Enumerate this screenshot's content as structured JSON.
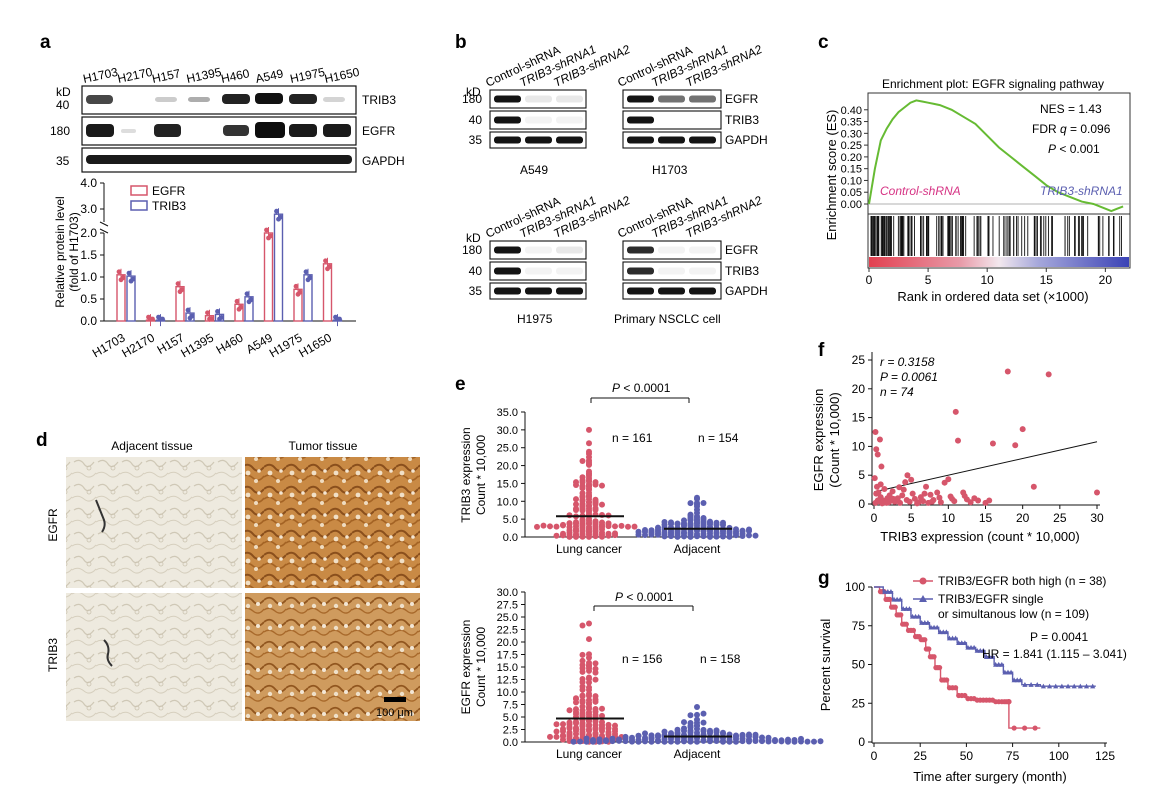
{
  "panels": {
    "a": {
      "letter": "a",
      "kd": "kD",
      "cell_lines": [
        "H1703",
        "H2170",
        "H157",
        "H1395",
        "H460",
        "A549",
        "H1975",
        "H1650"
      ],
      "blots": [
        {
          "mw": "40",
          "label": "TRIB3"
        },
        {
          "mw": "180",
          "label": "EGFR"
        },
        {
          "mw": "35",
          "label": "GAPDH"
        }
      ],
      "ylabel": "Relative protein level",
      "ylabel2": "(fold of H1703)",
      "legend": [
        "EGFR",
        "TRIB3"
      ],
      "yticks_low": [
        "0.0",
        "0.5",
        "1.0",
        "1.5",
        "2.0"
      ],
      "yticks_high": [
        "3.0",
        "4.0"
      ]
    },
    "b": {
      "letter": "b",
      "kd": "kD",
      "lanes": [
        "Control-shRNA",
        "TRIB3-shRNA1",
        "TRIB3-shRNA2"
      ],
      "blots": [
        {
          "mw": "180",
          "label": "EGFR"
        },
        {
          "mw": "40",
          "label": "TRIB3"
        },
        {
          "mw": "35",
          "label": "GAPDH"
        }
      ],
      "cells": [
        "A549",
        "H1703",
        "H1975",
        "Primary NSCLC cell"
      ]
    },
    "c": {
      "letter": "c",
      "title": "Enrichment plot: EGFR signaling pathway",
      "ylabel": "Enrichment score (ES)",
      "xlabel": "Rank in ordered data set (×1000)",
      "nes": "NES = 1.43",
      "fdr_a": "FDR ",
      "fdr_q": "q",
      "fdr_b": " = 0.096",
      "p_a": "P",
      "p_b": " < 0.001",
      "left_label": "Control-shRNA",
      "right_label": "TRIB3-shRNA1",
      "yticks": [
        "0.40",
        "0.35",
        "0.30",
        "0.25",
        "0.20",
        "0.15",
        "0.10",
        "0.05",
        "0.00"
      ],
      "xticks": [
        "0",
        "5",
        "10",
        "15",
        "20"
      ]
    },
    "d": {
      "letter": "d",
      "col1": "Adjacent tissue",
      "col2": "Tumor tissue",
      "row1": "EGFR",
      "row2": "TRIB3",
      "scale": "100 μm"
    },
    "e": {
      "letter": "e",
      "top": {
        "ylabel1": "TRIB3 expression",
        "ylabel2": "Count * 10,000",
        "p_a": "P",
        "p_b": " < 0.0001",
        "n1": "n = 161",
        "n2": "n = 154",
        "groups": [
          "Lung cancer",
          "Adjacent"
        ],
        "yticks": [
          "0.0",
          "5.0",
          "10.0",
          "15.0",
          "20.0",
          "25.0",
          "30.0",
          "35.0"
        ]
      },
      "bottom": {
        "ylabel1": "EGFR expression",
        "ylabel2": "Count * 10,000",
        "p_a": "P",
        "p_b": " < 0.0001",
        "n1": "n = 156",
        "n2": "n = 158",
        "groups": [
          "Lung cancer",
          "Adjacent"
        ],
        "yticks": [
          "0.0",
          "2.5",
          "5.0",
          "7.5",
          "10.0",
          "12.5",
          "15.0",
          "17.5",
          "20.0",
          "22.5",
          "25.0",
          "27.5",
          "30.0"
        ]
      }
    },
    "f": {
      "letter": "f",
      "r": "r = 0.3158",
      "p": "P = 0.0061",
      "n": "n = 74",
      "ylabel1": "EGFR expression",
      "ylabel2": "(Count * 10,000)",
      "xlabel": "TRIB3 expression (count * 10,000)",
      "xticks": [
        "0",
        "5",
        "10",
        "15",
        "20",
        "25",
        "30"
      ],
      "yticks": [
        "0",
        "5",
        "10",
        "15",
        "20",
        "25"
      ]
    },
    "g": {
      "letter": "g",
      "legend1": "TRIB3/EGFR both high (n = 38)",
      "legend2a": "TRIB3/EGFR single",
      "legend2b": "or simultanous low (n = 109)",
      "p": "P = 0.0041",
      "hr": "HR = 1.841 (1.115 – 3.041)",
      "ylabel": "Percent survival",
      "xlabel": "Time after surgery (month)",
      "xticks": [
        "0",
        "25",
        "50",
        "75",
        "100",
        "125"
      ],
      "yticks": [
        "0",
        "25",
        "50",
        "75",
        "100"
      ]
    }
  },
  "colors": {
    "egfr_red": "#d6566b",
    "trib3_blue": "#5b5fb0",
    "gsea_green": "#66bb33",
    "control_magenta": "#d63384"
  },
  "chart_data": [
    {
      "type": "bar",
      "id": "a",
      "categories": [
        "H1703",
        "H2170",
        "H157",
        "H1395",
        "H460",
        "A549",
        "H1975",
        "H1650"
      ],
      "series": [
        {
          "name": "EGFR",
          "values": [
            1.05,
            0.02,
            0.78,
            0.12,
            0.38,
            2.0,
            0.72,
            1.3
          ]
        },
        {
          "name": "TRIB3",
          "values": [
            1.02,
            0.02,
            0.18,
            0.15,
            0.55,
            2.8,
            1.05,
            0.02
          ]
        }
      ],
      "ylabel": "Relative protein level (fold of H1703)",
      "ylim": [
        0,
        4
      ]
    },
    {
      "type": "line",
      "id": "c",
      "title": "Enrichment plot: EGFR signaling pathway",
      "xlabel": "Rank in ordered data set (×1000)",
      "ylabel": "Enrichment score (ES)",
      "x": [
        0,
        0.5,
        1,
        1.5,
        2,
        2.5,
        3,
        3.5,
        4,
        4.5,
        5,
        5.5,
        6,
        7,
        8,
        9,
        10,
        11,
        12,
        13,
        14,
        15,
        16,
        17,
        18,
        19,
        20,
        20.5,
        21,
        21.5
      ],
      "y": [
        0.0,
        0.15,
        0.27,
        0.32,
        0.36,
        0.39,
        0.41,
        0.43,
        0.44,
        0.435,
        0.43,
        0.425,
        0.42,
        0.4,
        0.37,
        0.34,
        0.29,
        0.24,
        0.2,
        0.16,
        0.12,
        0.08,
        0.05,
        0.03,
        0.01,
        0.0,
        -0.02,
        -0.03,
        -0.02,
        -0.01
      ],
      "xlim": [
        0,
        22
      ],
      "ylim": [
        -0.04,
        0.45
      ]
    },
    {
      "type": "scatter",
      "id": "f",
      "xlabel": "TRIB3 expression (count * 10,000)",
      "ylabel": "EGFR expression (Count * 10,000)",
      "points": [
        [
          0.2,
          12.5
        ],
        [
          0.3,
          9.5
        ],
        [
          0.5,
          8.6
        ],
        [
          0.8,
          11.2
        ],
        [
          1.0,
          6.5
        ],
        [
          0.1,
          4.5
        ],
        [
          0.4,
          3.0
        ],
        [
          0.6,
          2.0
        ],
        [
          0.9,
          1.2
        ],
        [
          1.2,
          0.6
        ],
        [
          1.5,
          0.3
        ],
        [
          0.2,
          0.2
        ],
        [
          0.3,
          1.8
        ],
        [
          0.7,
          0.5
        ],
        [
          1.1,
          0.1
        ],
        [
          1.8,
          1.0
        ],
        [
          2.0,
          0.3
        ],
        [
          2.3,
          0.6
        ],
        [
          2.5,
          2.2
        ],
        [
          2.8,
          0.4
        ],
        [
          3.0,
          0.8
        ],
        [
          3.2,
          1.0
        ],
        [
          3.5,
          0.2
        ],
        [
          3.8,
          1.5
        ],
        [
          4.0,
          2.5
        ],
        [
          4.2,
          3.8
        ],
        [
          4.5,
          5.0
        ],
        [
          4.8,
          0.4
        ],
        [
          5.0,
          4.2
        ],
        [
          5.2,
          1.8
        ],
        [
          5.5,
          0.9
        ],
        [
          6.0,
          0.3
        ],
        [
          6.3,
          1.2
        ],
        [
          6.6,
          0.5
        ],
        [
          7.0,
          3.0
        ],
        [
          7.3,
          0.2
        ],
        [
          7.6,
          1.6
        ],
        [
          8.0,
          0.7
        ],
        [
          8.5,
          2.0
        ],
        [
          9.0,
          0.3
        ],
        [
          9.5,
          3.7
        ],
        [
          10.0,
          4.3
        ],
        [
          10.3,
          1.3
        ],
        [
          10.8,
          0.5
        ],
        [
          11.0,
          16.0
        ],
        [
          11.3,
          11.0
        ],
        [
          12.0,
          2.0
        ],
        [
          12.5,
          0.8
        ],
        [
          13.0,
          0.3
        ],
        [
          13.5,
          1.0
        ],
        [
          14.0,
          0.6
        ],
        [
          15.0,
          0.2
        ],
        [
          15.5,
          0.6
        ],
        [
          16.0,
          10.5
        ],
        [
          18.0,
          23.0
        ],
        [
          19.0,
          10.2
        ],
        [
          20.0,
          13.0
        ],
        [
          21.5,
          3.0
        ],
        [
          23.5,
          22.5
        ],
        [
          30.0,
          2.0
        ],
        [
          0.5,
          0.6
        ],
        [
          1.4,
          2.6
        ],
        [
          2.1,
          1.5
        ],
        [
          3.4,
          2.9
        ],
        [
          5.8,
          0.1
        ],
        [
          6.8,
          1.8
        ],
        [
          8.8,
          1.1
        ],
        [
          10.5,
          0.9
        ],
        [
          12.2,
          1.4
        ],
        [
          0.9,
          3.4
        ],
        [
          1.7,
          0.2
        ],
        [
          2.6,
          0.9
        ],
        [
          4.4,
          0.7
        ],
        [
          7.8,
          0.4
        ]
      ],
      "fit": {
        "x": [
          0,
          30
        ],
        "y": [
          2.1,
          10.8
        ]
      },
      "xlim": [
        0,
        30
      ],
      "ylim": [
        0,
        25
      ]
    },
    {
      "type": "line",
      "id": "g",
      "xlabel": "Time after surgery (month)",
      "ylabel": "Percent survival",
      "series": [
        {
          "name": "TRIB3/EGFR both high (n = 38)",
          "x": [
            0,
            3,
            6,
            9,
            12,
            15,
            18,
            22,
            25,
            28,
            30,
            33,
            36,
            40,
            45,
            50,
            55,
            60,
            65,
            70,
            73,
            73,
            90
          ],
          "y": [
            100,
            97,
            92,
            87,
            82,
            76,
            72,
            68,
            66,
            60,
            55,
            48,
            40,
            35,
            30,
            28,
            27,
            27,
            26,
            26,
            26,
            9,
            9
          ]
        },
        {
          "name": "TRIB3/EGFR single or simultanous low (n = 109)",
          "x": [
            0,
            5,
            10,
            15,
            20,
            25,
            30,
            35,
            40,
            45,
            50,
            55,
            60,
            65,
            70,
            75,
            80,
            90,
            100,
            110,
            120
          ],
          "y": [
            100,
            97,
            92,
            86,
            81,
            77,
            74,
            71,
            67,
            64,
            61,
            59,
            55,
            50,
            45,
            40,
            37,
            36,
            36,
            36,
            36
          ]
        }
      ],
      "xlim": [
        0,
        125
      ],
      "ylim": [
        0,
        100
      ]
    }
  ]
}
